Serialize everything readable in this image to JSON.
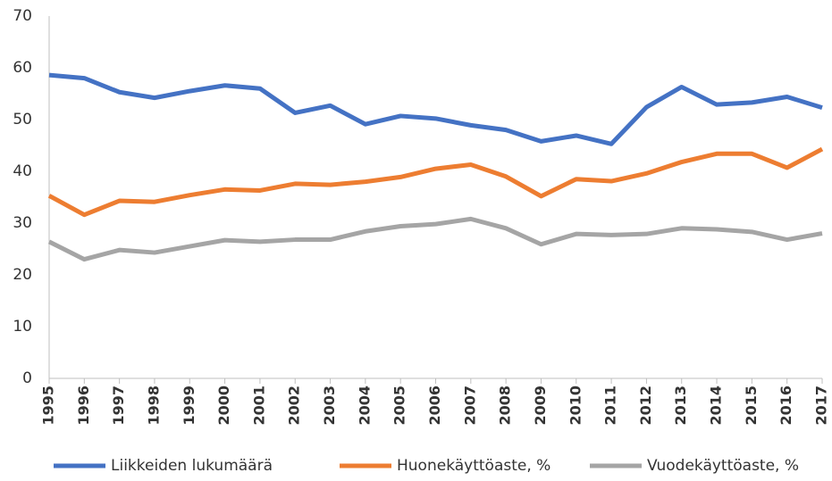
{
  "chart_data": {
    "type": "line",
    "categories": [
      "1995",
      "1996",
      "1997",
      "1998",
      "1999",
      "2000",
      "2001",
      "2002",
      "2003",
      "2004",
      "2005",
      "2006",
      "2007",
      "2008",
      "2009",
      "2010",
      "2011",
      "2012",
      "2013",
      "2014",
      "2015",
      "2016",
      "2017"
    ],
    "series": [
      {
        "name": "Liikkeiden lukumäärä",
        "color": "#4472c4",
        "values": [
          58.6,
          58.0,
          55.3,
          54.2,
          55.5,
          56.6,
          56.0,
          51.3,
          52.7,
          49.1,
          50.7,
          50.2,
          48.9,
          48.0,
          45.8,
          46.9,
          45.3,
          52.4,
          56.3,
          52.9,
          53.3,
          54.4,
          52.3
        ]
      },
      {
        "name": "Huonekäyttöaste, %",
        "color": "#ed7d31",
        "values": [
          35.3,
          31.6,
          34.3,
          34.1,
          35.4,
          36.5,
          36.3,
          37.6,
          37.4,
          38.0,
          38.9,
          40.5,
          41.3,
          39.0,
          35.2,
          38.5,
          38.1,
          39.6,
          41.8,
          43.4,
          43.4,
          40.7,
          44.3
        ]
      },
      {
        "name": "Vuodekäyttöaste, %",
        "color": "#a5a5a5",
        "values": [
          26.4,
          23.0,
          24.8,
          24.3,
          25.5,
          26.7,
          26.4,
          26.8,
          26.8,
          28.4,
          29.4,
          29.8,
          30.8,
          29.0,
          25.9,
          27.9,
          27.7,
          27.9,
          29.0,
          28.8,
          28.3,
          26.8,
          28.0
        ]
      }
    ],
    "ylim": [
      0,
      70
    ],
    "yticks": [
      0,
      10,
      20,
      30,
      40,
      50,
      60,
      70
    ],
    "grid": false,
    "legend": "bottom"
  }
}
